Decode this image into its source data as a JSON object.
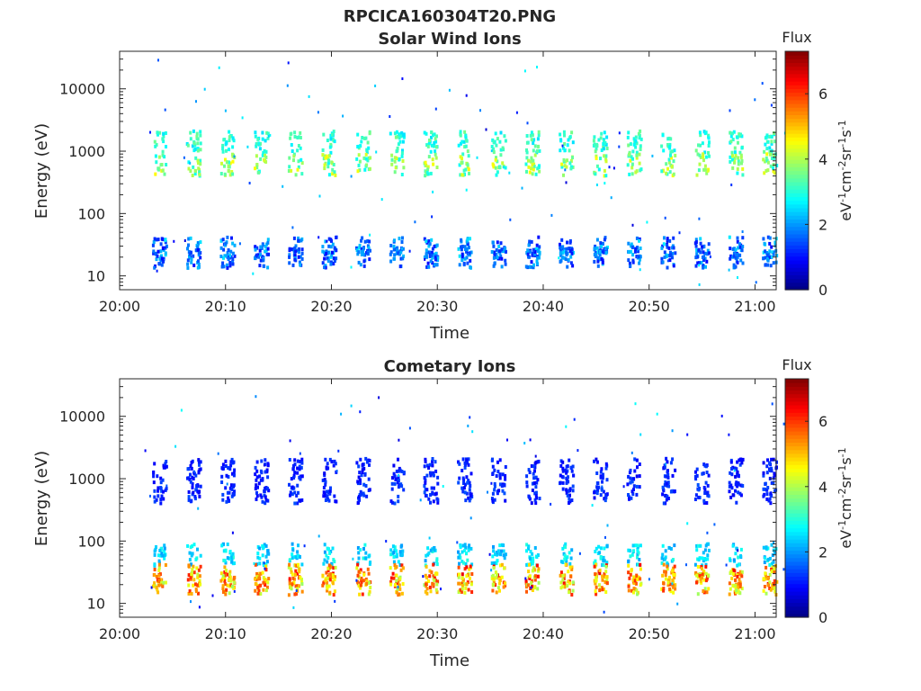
{
  "figure": {
    "title": "RPCICA160304T20.PNG"
  },
  "chart_data": [
    {
      "type": "heatmap",
      "title": "Solar Wind Ions",
      "xlabel": "Time",
      "ylabel": "Energy (eV)",
      "yscale": "log",
      "ylim": [
        6,
        40000
      ],
      "xlim": [
        "20:00",
        "21:02"
      ],
      "xticks": [
        "20:00",
        "20:10",
        "20:20",
        "20:30",
        "20:40",
        "20:50",
        "21:00"
      ],
      "yticks": [
        "10",
        "100",
        "1000",
        "10000"
      ],
      "colorbar": {
        "label": "Flux",
        "unit": "eV-1cm-2sr-1s-1",
        "ticks": [
          "0",
          "2",
          "4",
          "6"
        ],
        "range": [
          0,
          7.3
        ],
        "colormap": "jet"
      },
      "grid": false,
      "sweep_period_min": 3.2,
      "sweep_start_min": 3.7,
      "clusters": [
        {
          "energy": 1400,
          "flux_min": 2.5,
          "flux_max": 3.6
        },
        {
          "energy": 600,
          "flux_min": 2.7,
          "flux_max": 4.6
        },
        {
          "energy": 28,
          "flux_min": 1.0,
          "flux_max": 2.6
        },
        {
          "energy": 20,
          "flux_min": 0.9,
          "flux_max": 2.3
        }
      ]
    },
    {
      "type": "heatmap",
      "title": "Cometary Ions",
      "xlabel": "Time",
      "ylabel": "Energy (eV)",
      "yscale": "log",
      "ylim": [
        6,
        40000
      ],
      "xlim": [
        "20:00",
        "21:02"
      ],
      "xticks": [
        "20:00",
        "20:10",
        "20:20",
        "20:30",
        "20:40",
        "20:50",
        "21:00"
      ],
      "yticks": [
        "10",
        "100",
        "1000",
        "10000"
      ],
      "colorbar": {
        "label": "Flux",
        "unit": "eV-1cm-2sr-1s-1",
        "ticks": [
          "0",
          "2",
          "4",
          "6"
        ],
        "range": [
          0,
          7.3
        ],
        "colormap": "jet"
      },
      "grid": false,
      "sweep_period_min": 3.2,
      "sweep_start_min": 3.7,
      "clusters": [
        {
          "energy": 1400,
          "flux_min": 0.8,
          "flux_max": 1.4
        },
        {
          "energy": 600,
          "flux_min": 0.8,
          "flux_max": 1.5
        },
        {
          "energy": 60,
          "flux_min": 2.0,
          "flux_max": 3.0
        },
        {
          "energy": 28,
          "flux_min": 4.0,
          "flux_max": 6.6
        },
        {
          "energy": 20,
          "flux_min": 3.8,
          "flux_max": 6.2
        }
      ]
    }
  ]
}
